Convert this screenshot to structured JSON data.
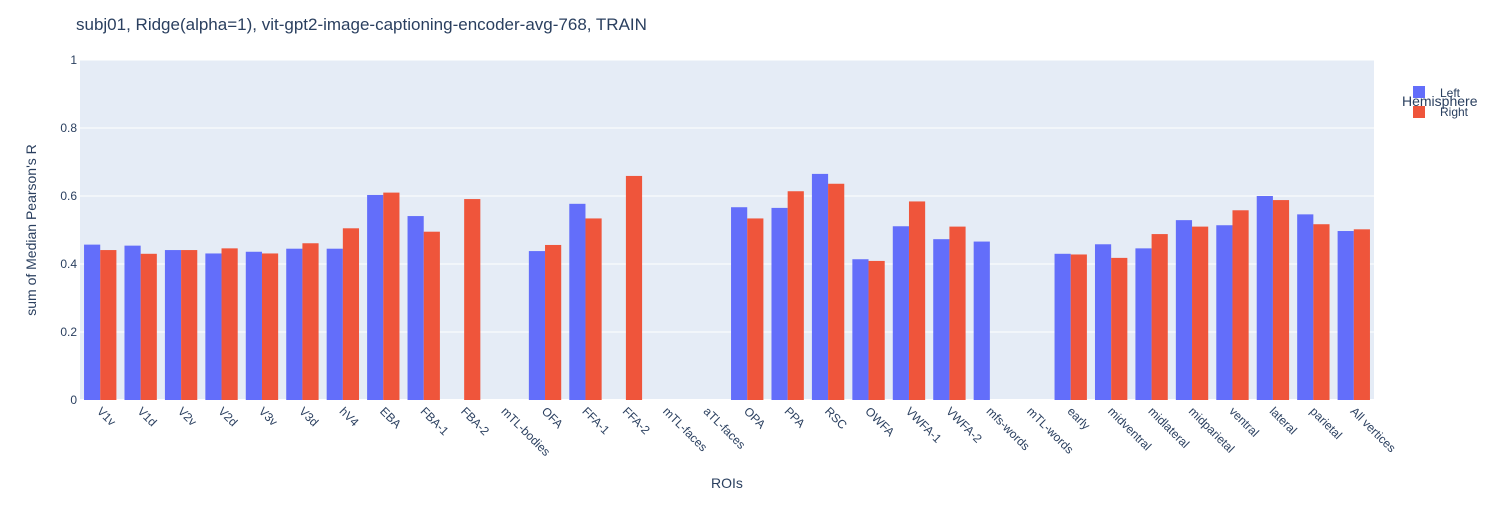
{
  "chart_data": {
    "type": "bar",
    "title": "subj01, Ridge(alpha=1), vit-gpt2-image-captioning-encoder-avg-768, TRAIN",
    "xlabel": "ROIs",
    "ylabel": "sum of Median Pearson's R",
    "ylim": [
      0,
      1
    ],
    "yticks": [
      "0",
      "0.2",
      "0.4",
      "0.6",
      "0.8",
      "1"
    ],
    "grid": true,
    "legend_title": "Hemisphere",
    "legend_position": "top-right",
    "categories": [
      "V1v",
      "V1d",
      "V2v",
      "V2d",
      "V3v",
      "V3d",
      "hV4",
      "EBA",
      "FBA-1",
      "FBA-2",
      "mTL-bodies",
      "OFA",
      "FFA-1",
      "FFA-2",
      "mTL-faces",
      "aTL-faces",
      "OPA",
      "PPA",
      "RSC",
      "OWFA",
      "VWFA-1",
      "VWFA-2",
      "mfs-words",
      "mTL-words",
      "early",
      "midventral",
      "midlateral",
      "midparietal",
      "ventral",
      "lateral",
      "parietal",
      "All vertices"
    ],
    "series": [
      {
        "name": "Left",
        "color": "#636efa",
        "values": [
          0.457,
          0.454,
          0.441,
          0.431,
          0.436,
          0.445,
          0.445,
          0.603,
          0.541,
          null,
          null,
          0.438,
          0.577,
          null,
          null,
          null,
          0.567,
          0.565,
          0.665,
          0.414,
          0.511,
          0.473,
          0.466,
          null,
          0.43,
          0.458,
          0.446,
          0.529,
          0.514,
          0.6,
          0.546,
          0.497
        ]
      },
      {
        "name": "Right",
        "color": "#ef553b",
        "values": [
          0.441,
          0.43,
          0.441,
          0.446,
          0.431,
          0.461,
          0.505,
          0.61,
          0.495,
          0.591,
          null,
          0.456,
          0.534,
          0.659,
          null,
          null,
          0.534,
          0.614,
          0.636,
          0.409,
          0.584,
          0.51,
          null,
          null,
          0.428,
          0.418,
          0.488,
          0.51,
          0.558,
          0.588,
          0.517,
          0.502
        ]
      }
    ]
  }
}
